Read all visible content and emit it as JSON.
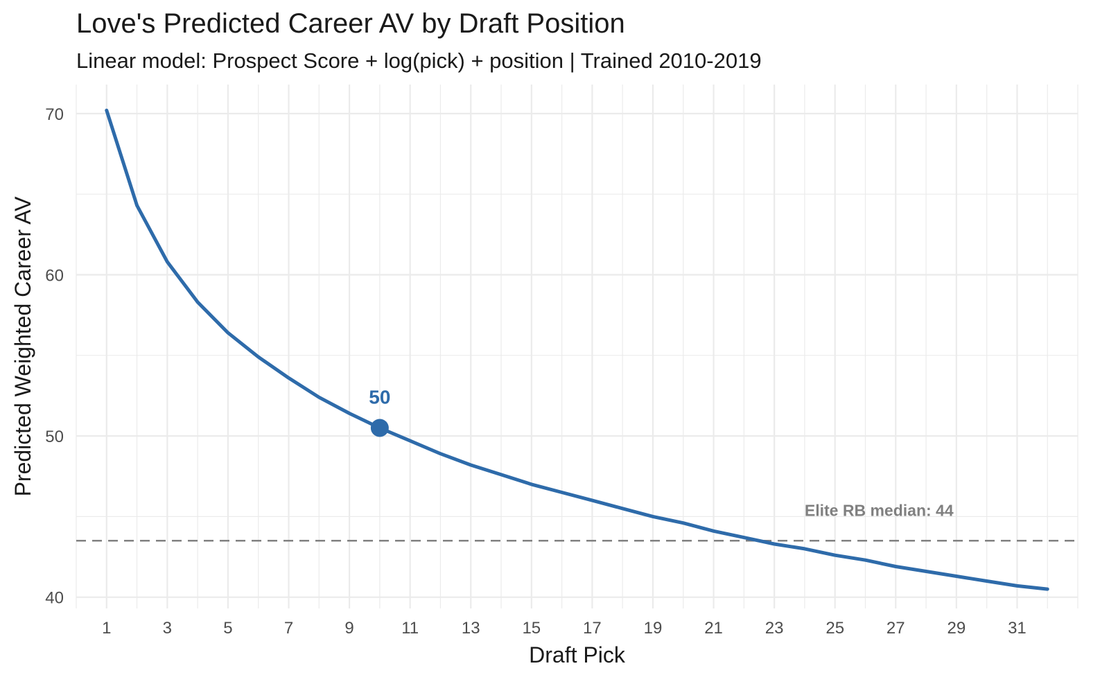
{
  "chart_data": {
    "type": "line",
    "title": "Love's Predicted Career AV by Draft Position",
    "subtitle": "Linear model: Prospect Score + log(pick) + position | Trained 2010-2019",
    "xlabel": "Draft Pick",
    "ylabel": "Predicted Weighted Career AV",
    "xlim": [
      0,
      33
    ],
    "ylim": [
      39.3,
      71.8
    ],
    "x_ticks": [
      1,
      3,
      5,
      7,
      9,
      11,
      13,
      15,
      17,
      19,
      21,
      23,
      25,
      27,
      29,
      31
    ],
    "y_ticks": [
      40,
      50,
      60,
      70
    ],
    "grid": true,
    "series": [
      {
        "color": "#2E6BAA",
        "x": [
          1,
          2,
          3,
          4,
          5,
          6,
          7,
          8,
          9,
          10,
          11,
          12,
          13,
          14,
          15,
          16,
          17,
          18,
          19,
          20,
          21,
          22,
          23,
          24,
          25,
          26,
          27,
          28,
          29,
          30,
          31,
          32
        ],
        "values": [
          70.2,
          64.3,
          60.8,
          58.3,
          56.4,
          54.9,
          53.6,
          52.4,
          51.4,
          50.5,
          49.7,
          48.9,
          48.2,
          47.6,
          47.0,
          46.5,
          46.0,
          45.5,
          45.0,
          44.6,
          44.1,
          43.7,
          43.3,
          43.0,
          42.6,
          42.3,
          41.9,
          41.6,
          41.3,
          41.0,
          40.7,
          40.5
        ]
      }
    ],
    "highlight": {
      "x": 10,
      "y": 50.5,
      "label": "50",
      "color": "#2E6BAA"
    },
    "reference_line": {
      "y": 43.5,
      "label": "Elite RB median: 44",
      "color": "#808080",
      "style": "dashed"
    }
  }
}
